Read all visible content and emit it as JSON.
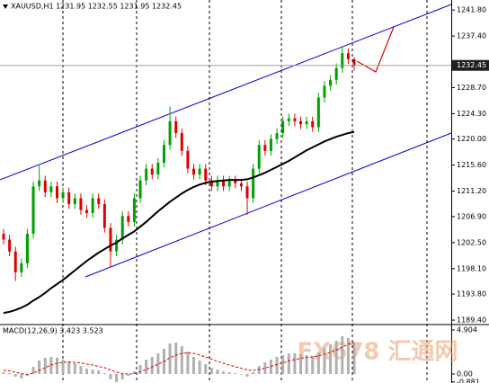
{
  "chart_data": [
    {
      "type": "candlestick",
      "title": "XAUUSD,H1 1231.95 1232.55 1231.95 1232.45",
      "up_color": "#00a000",
      "down_color": "#e00000",
      "open": [
        1204,
        1203,
        1201,
        1197.5,
        1199,
        1204,
        1212,
        1213,
        1211,
        1212,
        1210,
        1211,
        1209,
        1210,
        1208,
        1207.5,
        1210,
        1209,
        1205,
        1201,
        1203,
        1207,
        1206,
        1210,
        1213,
        1215,
        1214,
        1216,
        1219,
        1223,
        1221,
        1218,
        1215,
        1214,
        1215,
        1213,
        1212,
        1213,
        1212,
        1213,
        1212.5,
        1212,
        1210,
        1215,
        1219,
        1218,
        1220,
        1221,
        1223,
        1223.5,
        1223,
        1222.5,
        1223,
        1222,
        1227,
        1229,
        1230,
        1232,
        1234.5,
        1233.5
      ],
      "high": [
        1204.8,
        1203.8,
        1201.8,
        1199.8,
        1204.8,
        1212.8,
        1215.5,
        1213.8,
        1212.8,
        1212.8,
        1211.8,
        1211.8,
        1210.8,
        1210.8,
        1208.8,
        1210.8,
        1210.8,
        1209.8,
        1205.8,
        1203.8,
        1207.8,
        1207.8,
        1210.8,
        1213.8,
        1215.8,
        1215.8,
        1216.8,
        1219.8,
        1225.5,
        1223.8,
        1221.8,
        1218.8,
        1215.8,
        1215.8,
        1215.8,
        1213.8,
        1213.8,
        1213.8,
        1213.8,
        1213.8,
        1213.3,
        1212.8,
        1215.8,
        1219.8,
        1219.8,
        1220.8,
        1221.8,
        1223.8,
        1224.3,
        1224.3,
        1223.8,
        1223.8,
        1223.8,
        1227.8,
        1229.8,
        1230.8,
        1232.8,
        1235.5,
        1235.3,
        1233.8
      ],
      "low": [
        1202.2,
        1200.2,
        1196,
        1196.7,
        1198.2,
        1203.2,
        1211.2,
        1210.2,
        1210.2,
        1209.2,
        1209.2,
        1208.2,
        1208.2,
        1207.2,
        1206.7,
        1206.7,
        1208.2,
        1204.2,
        1198.3,
        1200.2,
        1202.2,
        1205.2,
        1205.2,
        1209.2,
        1212.2,
        1213.2,
        1213.2,
        1215.2,
        1218.2,
        1220.2,
        1217.2,
        1214.2,
        1213.2,
        1213.2,
        1212.2,
        1211.2,
        1211.2,
        1211.2,
        1211.2,
        1211.7,
        1211.2,
        1207.2,
        1209.2,
        1214.2,
        1217.2,
        1217.2,
        1219.2,
        1220.2,
        1222.2,
        1222.2,
        1221.7,
        1221.7,
        1221.2,
        1221.2,
        1226.2,
        1228.2,
        1229.2,
        1231.2,
        1232.7,
        1231.6
      ],
      "close": [
        1203,
        1201,
        1197.5,
        1199,
        1204,
        1212,
        1213,
        1211,
        1212,
        1210,
        1211,
        1209,
        1210,
        1208,
        1207.5,
        1210,
        1209,
        1205,
        1201,
        1203,
        1207,
        1206,
        1210,
        1213,
        1215,
        1214,
        1216,
        1219,
        1223,
        1221,
        1218,
        1215,
        1214,
        1215,
        1213,
        1212,
        1213,
        1212,
        1213,
        1212.5,
        1212,
        1210,
        1215,
        1219,
        1218,
        1220,
        1221,
        1223,
        1223.5,
        1223,
        1222.5,
        1223,
        1222,
        1227,
        1229,
        1230,
        1232,
        1234.5,
        1233.5,
        1232.45
      ],
      "ma": {
        "color": "#000000",
        "values": [
          1190.6,
          1190.8,
          1191.1,
          1191.5,
          1192,
          1192.7,
          1193.3,
          1194,
          1194.8,
          1195.5,
          1196.2,
          1197,
          1197.8,
          1198.6,
          1199.4,
          1200.1,
          1200.8,
          1201.4,
          1202,
          1202.5,
          1203.2,
          1203.8,
          1204.4,
          1205.2,
          1206,
          1206.9,
          1207.8,
          1208.6,
          1209.4,
          1210.1,
          1210.8,
          1211.4,
          1211.9,
          1212.3,
          1212.6,
          1212.8,
          1212.9,
          1213,
          1213.1,
          1213.1,
          1213.1,
          1213.2,
          1213.5,
          1213.9,
          1214.3,
          1214.8,
          1215.3,
          1215.8,
          1216.3,
          1216.9,
          1217.5,
          1218.1,
          1218.6,
          1219.1,
          1219.6,
          1220,
          1220.4,
          1220.7,
          1221,
          1221.2
        ]
      },
      "last_price": 1232.45,
      "ylim": [
        1188.8,
        1243.5
      ],
      "yticks": [
        {
          "value": 1241.8,
          "label": "1241.80"
        },
        {
          "value": 1237.4,
          "label": "1237.40"
        },
        {
          "value": 1228.7,
          "label": "1228.70"
        },
        {
          "value": 1224.3,
          "label": "1224.30"
        },
        {
          "value": 1220,
          "label": "1220.00"
        },
        {
          "value": 1215.6,
          "label": "1215.60"
        },
        {
          "value": 1211.2,
          "label": "1211.20"
        },
        {
          "value": 1206.9,
          "label": "1206.90"
        },
        {
          "value": 1202.5,
          "label": "1202.50"
        },
        {
          "value": 1198.1,
          "label": "1198.10"
        },
        {
          "value": 1193.8,
          "label": "1193.80"
        },
        {
          "value": 1189.4,
          "label": "1189.40"
        }
      ]
    },
    {
      "type": "macd",
      "title": "MACD(12,26,9) 3.423 3.523",
      "watermark": "FX678 汇通网",
      "color": "#b0b0b0",
      "values": [
        0.2,
        0.1,
        -0.3,
        -0.5,
        -0.2,
        0.8,
        1.5,
        1.8,
        1.9,
        1.8,
        1.6,
        1.4,
        1.2,
        0.9,
        0.6,
        0.5,
        0.4,
        0.1,
        -0.6,
        -0.9,
        -0.6,
        -0.2,
        0.3,
        1.0,
        1.6,
        1.9,
        2.3,
        2.8,
        3.4,
        3.5,
        3.1,
        2.5,
        1.9,
        1.5,
        1.1,
        0.7,
        0.5,
        0.3,
        0.2,
        0.1,
        0.0,
        -0.3,
        0.2,
        0.9,
        1.3,
        1.6,
        1.9,
        2.1,
        2.3,
        2.3,
        2.2,
        2.1,
        2.0,
        2.4,
        2.9,
        3.3,
        3.7,
        4.2,
        4.0,
        3.423
      ],
      "signal": {
        "color": "#e00000",
        "values": [
          0.4,
          0.35,
          0.2,
          0.05,
          -0.05,
          0.1,
          0.4,
          0.7,
          1.0,
          1.2,
          1.3,
          1.35,
          1.3,
          1.25,
          1.1,
          1.0,
          0.85,
          0.7,
          0.45,
          0.2,
          0.05,
          0.0,
          0.05,
          0.25,
          0.5,
          0.8,
          1.1,
          1.4,
          1.8,
          2.1,
          2.3,
          2.35,
          2.3,
          2.1,
          1.9,
          1.65,
          1.4,
          1.2,
          1.0,
          0.8,
          0.65,
          0.45,
          0.4,
          0.5,
          0.65,
          0.85,
          1.05,
          1.25,
          1.45,
          1.6,
          1.75,
          1.85,
          1.9,
          2.0,
          2.2,
          2.4,
          2.7,
          3.0,
          3.3,
          3.523
        ]
      },
      "ylim": [
        -1.0,
        5.4
      ],
      "yticks": [
        4.904,
        {
          "value": 0,
          "label": "0.00"
        },
        -0.881
      ]
    }
  ]
}
